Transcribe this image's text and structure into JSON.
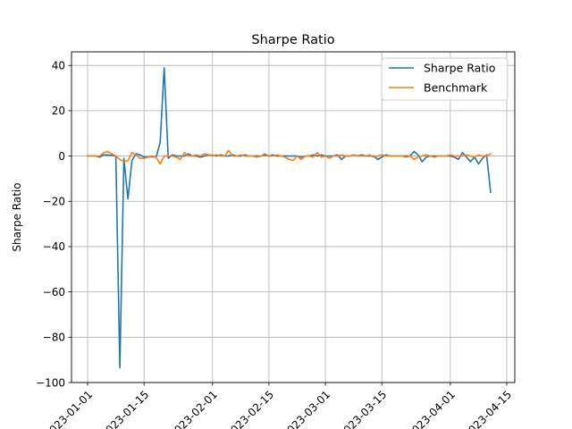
{
  "chart_data": {
    "type": "line",
    "title": "Sharpe Ratio",
    "xlabel": "",
    "ylabel": "Sharpe Ratio",
    "x_start": "2023-01-01",
    "x_end": "2023-04-13",
    "xlim": [
      "2022-12-28",
      "2023-04-17"
    ],
    "ylim": [
      -100,
      46
    ],
    "x_ticks": [
      "2023-01-01",
      "2023-01-15",
      "2023-02-01",
      "2023-02-15",
      "2023-03-01",
      "2023-03-15",
      "2023-04-01",
      "2023-04-15"
    ],
    "x_tick_labels": [
      "2023-01-01",
      "2023-01-15",
      "2023-02-01",
      "2023-02-15",
      "2023-03-01",
      "2023-03-15",
      "2023-04-01",
      "2023-04-15"
    ],
    "y_ticks": [
      -100,
      -80,
      -60,
      -40,
      -20,
      0,
      20,
      40
    ],
    "y_tick_labels": [
      "−100",
      "−80",
      "−60",
      "−40",
      "−20",
      "0",
      "20",
      "40"
    ],
    "grid": true,
    "legend_position": "top-right",
    "series": [
      {
        "name": "Sharpe Ratio",
        "color": "#1f77b4",
        "values": [
          0,
          0,
          0,
          -0.5,
          0.5,
          0.5,
          0.3,
          0,
          -93.5,
          -1,
          -19,
          -2,
          1,
          0.5,
          -0.5,
          -0.5,
          -0.3,
          -0.5,
          6,
          39,
          -1,
          0.5,
          0,
          0,
          0,
          1,
          0,
          0,
          -0.5,
          0,
          0.5,
          0.3,
          0,
          0.5,
          0,
          0,
          0.5,
          0,
          0,
          0.5,
          0,
          0,
          0,
          0,
          0.5,
          0,
          0.5,
          0,
          0,
          0,
          0,
          0,
          0,
          -0.5,
          0,
          0,
          0.5,
          0,
          0.5,
          0,
          0,
          0,
          0.5,
          -1.5,
          0,
          0,
          0.5,
          0,
          0.5,
          0,
          0,
          0,
          -1.5,
          -0.5,
          0.5,
          0,
          0,
          0,
          0,
          0,
          0,
          2,
          0.5,
          -2.5,
          -0.5,
          0,
          0,
          0,
          0,
          0,
          0,
          -0.5,
          -1.5,
          1.5,
          -0.5,
          -2.5,
          -0.5,
          -3.5,
          -1,
          0.5,
          -16
        ]
      },
      {
        "name": "Benchmark",
        "color": "#ff7f0e",
        "values": [
          0,
          0,
          0,
          0,
          1.5,
          2,
          1,
          0,
          -1.5,
          -2.5,
          -2,
          1.5,
          0.5,
          -1,
          -1,
          -0.5,
          0,
          -0.5,
          -3.5,
          0,
          0,
          0,
          -0.5,
          -1.5,
          1.5,
          0,
          0,
          0.5,
          0,
          1,
          0.5,
          0,
          0.5,
          0,
          0,
          2.5,
          0,
          0,
          0.5,
          0,
          0,
          0,
          -0.5,
          0,
          1,
          0,
          0,
          0.5,
          0,
          -0.5,
          -1.5,
          -2,
          0,
          -1.5,
          0,
          0,
          -0.5,
          1.5,
          -0.5,
          0,
          -1,
          0,
          0,
          0.5,
          0,
          0,
          0.5,
          0,
          0,
          0,
          0.5,
          -0.5,
          0,
          0.5,
          0,
          0,
          0,
          0,
          0,
          -0.5,
          0,
          -1.5,
          -0.5,
          0,
          0.5,
          0,
          -0.5,
          0,
          0,
          0,
          0.5,
          0,
          0,
          0,
          0.5,
          0,
          -0.5,
          0.5,
          0,
          0,
          1
        ]
      }
    ]
  }
}
